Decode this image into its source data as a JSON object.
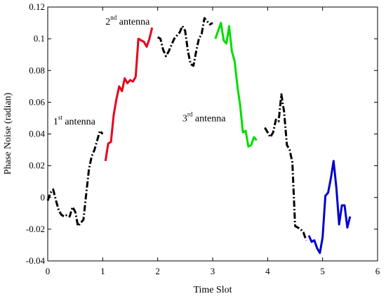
{
  "chart_data": {
    "type": "line",
    "xlabel": "Time Slot",
    "ylabel": "Phase Noise (radian)",
    "xlim": [
      0,
      6
    ],
    "ylim": [
      -0.04,
      0.12
    ],
    "x_ticks": [
      "0",
      "1",
      "2",
      "3",
      "4",
      "5",
      "6"
    ],
    "y_ticks": [
      "-0.04",
      "-0.02",
      "0",
      "0.02",
      "0.04",
      "0.06",
      "0.08",
      "0.1",
      "0.12"
    ],
    "grid": false,
    "legend": "none",
    "annotations": [
      {
        "base": "1",
        "sup": "st",
        "rest": " antenna",
        "x": 0.1,
        "y": 0.046
      },
      {
        "base": "2",
        "sup": "nd",
        "rest": " antenna",
        "x": 1.05,
        "y": 0.109
      },
      {
        "base": "3",
        "sup": "rd",
        "rest": " antenna",
        "x": 2.45,
        "y": 0.048
      }
    ],
    "series": [
      {
        "color": "#000000",
        "dashed": true,
        "points": [
          [
            0.0,
            -0.002
          ],
          [
            0.05,
            0.003
          ],
          [
            0.1,
            0.005
          ],
          [
            0.15,
            -0.002
          ],
          [
            0.2,
            -0.008
          ],
          [
            0.25,
            -0.011
          ],
          [
            0.3,
            -0.012
          ],
          [
            0.35,
            -0.011
          ],
          [
            0.4,
            -0.012
          ],
          [
            0.45,
            -0.006
          ],
          [
            0.5,
            -0.009
          ],
          [
            0.55,
            -0.018
          ],
          [
            0.6,
            -0.016
          ],
          [
            0.65,
            -0.014
          ],
          [
            0.7,
            0.002
          ],
          [
            0.75,
            0.018
          ],
          [
            0.8,
            0.026
          ],
          [
            0.85,
            0.03
          ],
          [
            0.9,
            0.036
          ],
          [
            0.95,
            0.042
          ],
          [
            1.0,
            0.04
          ]
        ]
      },
      {
        "color": "#e8001c",
        "dashed": false,
        "points": [
          [
            1.05,
            0.023
          ],
          [
            1.1,
            0.034
          ],
          [
            1.15,
            0.035
          ],
          [
            1.2,
            0.052
          ],
          [
            1.25,
            0.062
          ],
          [
            1.3,
            0.07
          ],
          [
            1.35,
            0.067
          ],
          [
            1.4,
            0.075
          ],
          [
            1.45,
            0.072
          ],
          [
            1.5,
            0.074
          ],
          [
            1.55,
            0.073
          ],
          [
            1.6,
            0.076
          ],
          [
            1.65,
            0.1
          ],
          [
            1.7,
            0.099
          ],
          [
            1.75,
            0.098
          ],
          [
            1.8,
            0.095
          ],
          [
            1.85,
            0.1
          ],
          [
            1.9,
            0.107
          ]
        ]
      },
      {
        "color": "#000000",
        "dashed": true,
        "points": [
          [
            2.0,
            0.101
          ],
          [
            2.05,
            0.1
          ],
          [
            2.1,
            0.093
          ],
          [
            2.15,
            0.089
          ],
          [
            2.2,
            0.092
          ],
          [
            2.25,
            0.096
          ],
          [
            2.3,
            0.1
          ],
          [
            2.35,
            0.102
          ],
          [
            2.4,
            0.104
          ],
          [
            2.45,
            0.108
          ],
          [
            2.5,
            0.105
          ],
          [
            2.55,
            0.092
          ],
          [
            2.6,
            0.084
          ],
          [
            2.65,
            0.083
          ],
          [
            2.7,
            0.092
          ],
          [
            2.75,
            0.1
          ],
          [
            2.8,
            0.103
          ],
          [
            2.85,
            0.113
          ],
          [
            2.9,
            0.111
          ],
          [
            2.95,
            0.109
          ],
          [
            3.0,
            0.11
          ]
        ]
      },
      {
        "color": "#00dd00",
        "dashed": false,
        "points": [
          [
            3.05,
            0.1
          ],
          [
            3.1,
            0.105
          ],
          [
            3.15,
            0.11
          ],
          [
            3.2,
            0.099
          ],
          [
            3.25,
            0.097
          ],
          [
            3.3,
            0.108
          ],
          [
            3.35,
            0.092
          ],
          [
            3.4,
            0.086
          ],
          [
            3.45,
            0.07
          ],
          [
            3.5,
            0.058
          ],
          [
            3.55,
            0.041
          ],
          [
            3.6,
            0.042
          ],
          [
            3.65,
            0.032
          ],
          [
            3.7,
            0.033
          ],
          [
            3.75,
            0.038
          ],
          [
            3.8,
            0.036
          ]
        ]
      },
      {
        "color": "#000000",
        "dashed": true,
        "points": [
          [
            3.95,
            0.044
          ],
          [
            4.0,
            0.041
          ],
          [
            4.05,
            0.038
          ],
          [
            4.1,
            0.041
          ],
          [
            4.15,
            0.049
          ],
          [
            4.2,
            0.048
          ],
          [
            4.25,
            0.065
          ],
          [
            4.3,
            0.054
          ],
          [
            4.35,
            0.033
          ],
          [
            4.4,
            0.03
          ],
          [
            4.45,
            0.022
          ],
          [
            4.5,
            -0.018
          ],
          [
            4.55,
            -0.019
          ],
          [
            4.6,
            -0.02
          ],
          [
            4.65,
            -0.022
          ],
          [
            4.7,
            -0.027
          ]
        ]
      },
      {
        "color": "#0000cc",
        "dashed": false,
        "points": [
          [
            4.75,
            -0.024
          ],
          [
            4.8,
            -0.028
          ],
          [
            4.85,
            -0.027
          ],
          [
            4.9,
            -0.032
          ],
          [
            4.95,
            -0.035
          ],
          [
            5.0,
            -0.025
          ],
          [
            5.05,
            0.001
          ],
          [
            5.1,
            0.003
          ],
          [
            5.15,
            0.012
          ],
          [
            5.2,
            0.023
          ],
          [
            5.25,
            0.006
          ],
          [
            5.3,
            -0.017
          ],
          [
            5.35,
            -0.005
          ],
          [
            5.4,
            -0.005
          ],
          [
            5.45,
            -0.019
          ],
          [
            5.5,
            -0.012
          ]
        ]
      }
    ]
  }
}
